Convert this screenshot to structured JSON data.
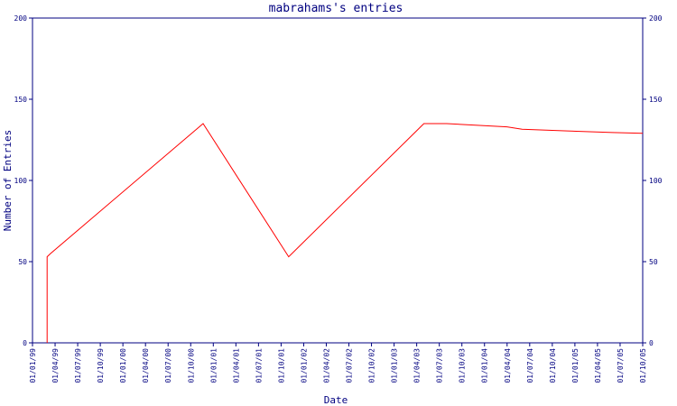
{
  "chart_data": {
    "type": "line",
    "title": "mabrahams's entries",
    "xlabel": "Date",
    "ylabel": "Number of Entries",
    "ylim": [
      0,
      200
    ],
    "yticks": [
      0,
      50,
      100,
      150,
      200
    ],
    "xtick_labels": [
      "01/01/99",
      "01/04/99",
      "01/07/99",
      "01/10/99",
      "01/01/00",
      "01/04/00",
      "01/07/00",
      "01/10/00",
      "01/01/01",
      "01/04/01",
      "01/07/01",
      "01/10/01",
      "01/01/02",
      "01/04/02",
      "01/07/02",
      "01/10/02",
      "01/01/03",
      "01/04/03",
      "01/07/03",
      "01/10/03",
      "01/01/04",
      "01/04/04",
      "01/07/04",
      "01/10/04",
      "01/01/05",
      "01/04/05",
      "01/07/05",
      "01/10/05"
    ],
    "grid": false,
    "series": [
      {
        "color": "#ff0000",
        "points": [
          {
            "x": "1999-03-01",
            "y": 0
          },
          {
            "x": "1999-03-01",
            "y": 53
          },
          {
            "x": "1999-03-15",
            "y": 55
          },
          {
            "x": "2000-11-20",
            "y": 135
          },
          {
            "x": "2001-11-01",
            "y": 53
          },
          {
            "x": "2003-05-01",
            "y": 135
          },
          {
            "x": "2003-08-01",
            "y": 135
          },
          {
            "x": "2004-04-01",
            "y": 133
          },
          {
            "x": "2004-06-01",
            "y": 131.5
          },
          {
            "x": "2004-12-01",
            "y": 130.5
          },
          {
            "x": "2005-06-01",
            "y": 129.5
          },
          {
            "x": "2005-10-01",
            "y": 129
          }
        ]
      }
    ]
  }
}
